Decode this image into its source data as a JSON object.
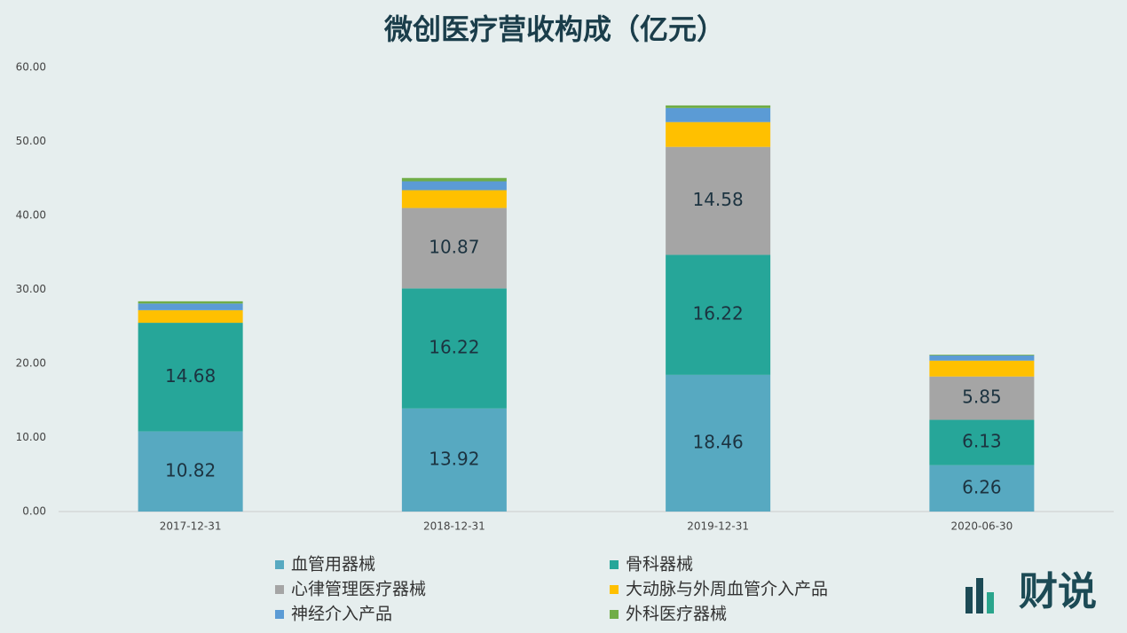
{
  "chart_data": {
    "type": "stacked_bar",
    "title": "微创医疗营收构成（亿元）",
    "categories": [
      "2017-12-31",
      "2018-12-31",
      "2019-12-31",
      "2020-06-30"
    ],
    "series": [
      {
        "name": "血管用器械",
        "color": "#57a9c1",
        "values": [
          10.82,
          13.92,
          18.46,
          6.26
        ],
        "show_labels": true
      },
      {
        "name": "骨科器械",
        "color": "#26a699",
        "values": [
          14.68,
          16.22,
          16.22,
          6.13
        ],
        "show_labels": true
      },
      {
        "name": "心律管理医疗器械",
        "color": "#a5a5a5",
        "values": [
          null,
          10.87,
          14.58,
          5.85
        ],
        "show_labels": true
      },
      {
        "name": "大动脉与外周血管介入产品",
        "color": "#ffc000",
        "values": [
          1.7,
          2.4,
          3.35,
          2.15
        ],
        "show_labels": false
      },
      {
        "name": "神经介入产品",
        "color": "#5b9bd5",
        "values": [
          0.9,
          1.2,
          1.9,
          0.7
        ],
        "show_labels": false
      },
      {
        "name": "外科医疗器械",
        "color": "#70ad47",
        "values": [
          0.3,
          0.45,
          0.35,
          0.1
        ],
        "show_labels": false
      }
    ],
    "ylim": [
      0,
      60
    ],
    "yticks": [
      {
        "value": 0,
        "label": "0.00"
      },
      {
        "value": 10,
        "label": "10.00"
      },
      {
        "value": 20,
        "label": "20.00"
      },
      {
        "value": 30,
        "label": "30.00"
      },
      {
        "value": 40,
        "label": "40.00"
      },
      {
        "value": 50,
        "label": "50.00"
      },
      {
        "value": 60,
        "label": "60.00"
      }
    ],
    "legend": "bottom",
    "logo": "财说"
  }
}
